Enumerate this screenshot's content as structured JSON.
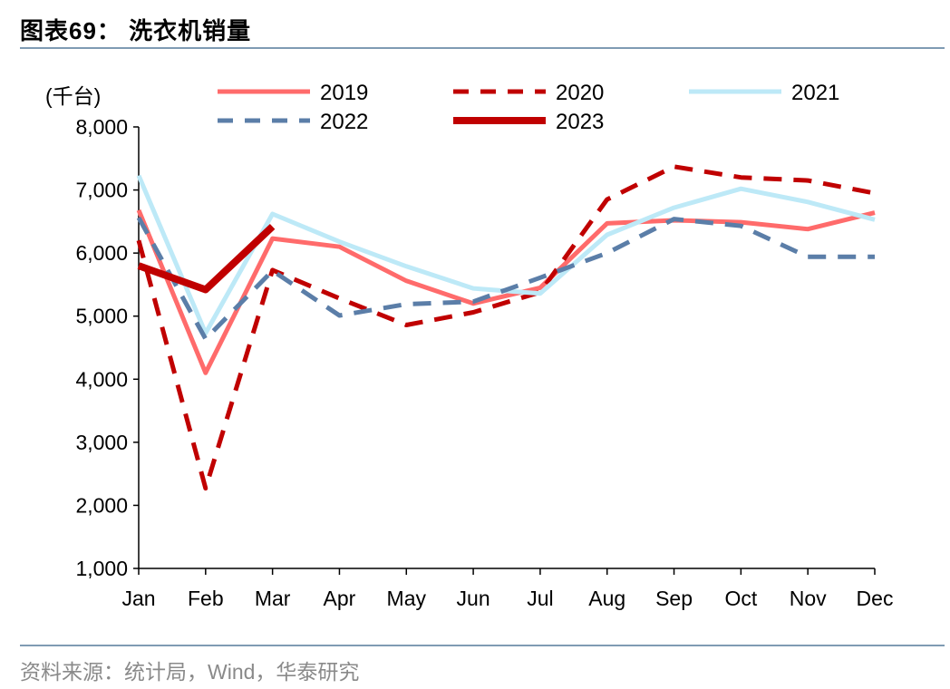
{
  "header": {
    "title": "图表69：  洗衣机销量"
  },
  "footer": {
    "source": "资料来源：统计局，Wind，华泰研究"
  },
  "chart_data": {
    "type": "line",
    "unit_label": "(千台)",
    "categories": [
      "Jan",
      "Feb",
      "Mar",
      "Apr",
      "May",
      "Jun",
      "Jul",
      "Aug",
      "Sep",
      "Oct",
      "Nov",
      "Dec"
    ],
    "ylim": [
      1000,
      8000
    ],
    "yticks": [
      "1,000",
      "2,000",
      "3,000",
      "4,000",
      "5,000",
      "6,000",
      "7,000",
      "8,000"
    ],
    "ytick_values": [
      1000,
      2000,
      3000,
      4000,
      5000,
      6000,
      7000,
      8000
    ],
    "grid": false,
    "legend_position": "top",
    "series": [
      {
        "name": "2019",
        "color": "#ff6b6b",
        "style": "solid",
        "width": "normal",
        "values": [
          6680,
          4100,
          6230,
          6100,
          5560,
          5200,
          5450,
          6470,
          6520,
          6490,
          6380,
          6640
        ]
      },
      {
        "name": "2020",
        "color": "#c00000",
        "style": "dashed",
        "width": "normal",
        "values": [
          6200,
          2270,
          5730,
          5280,
          4860,
          5060,
          5380,
          6850,
          7370,
          7200,
          7150,
          6950
        ]
      },
      {
        "name": "2021",
        "color": "#bde9f7",
        "style": "solid",
        "width": "normal",
        "values": [
          7230,
          4730,
          6620,
          6180,
          5790,
          5440,
          5360,
          6290,
          6720,
          7020,
          6810,
          6530
        ]
      },
      {
        "name": "2022",
        "color": "#5b7ea8",
        "style": "dashed",
        "width": "normal",
        "values": [
          6560,
          4640,
          5720,
          5010,
          5190,
          5230,
          5610,
          6000,
          6540,
          6430,
          5940,
          5940
        ]
      },
      {
        "name": "2023",
        "color": "#c00000",
        "style": "solid",
        "width": "thick",
        "values": [
          5800,
          5420,
          6420,
          null,
          null,
          null,
          null,
          null,
          null,
          null,
          null,
          null
        ]
      }
    ]
  }
}
